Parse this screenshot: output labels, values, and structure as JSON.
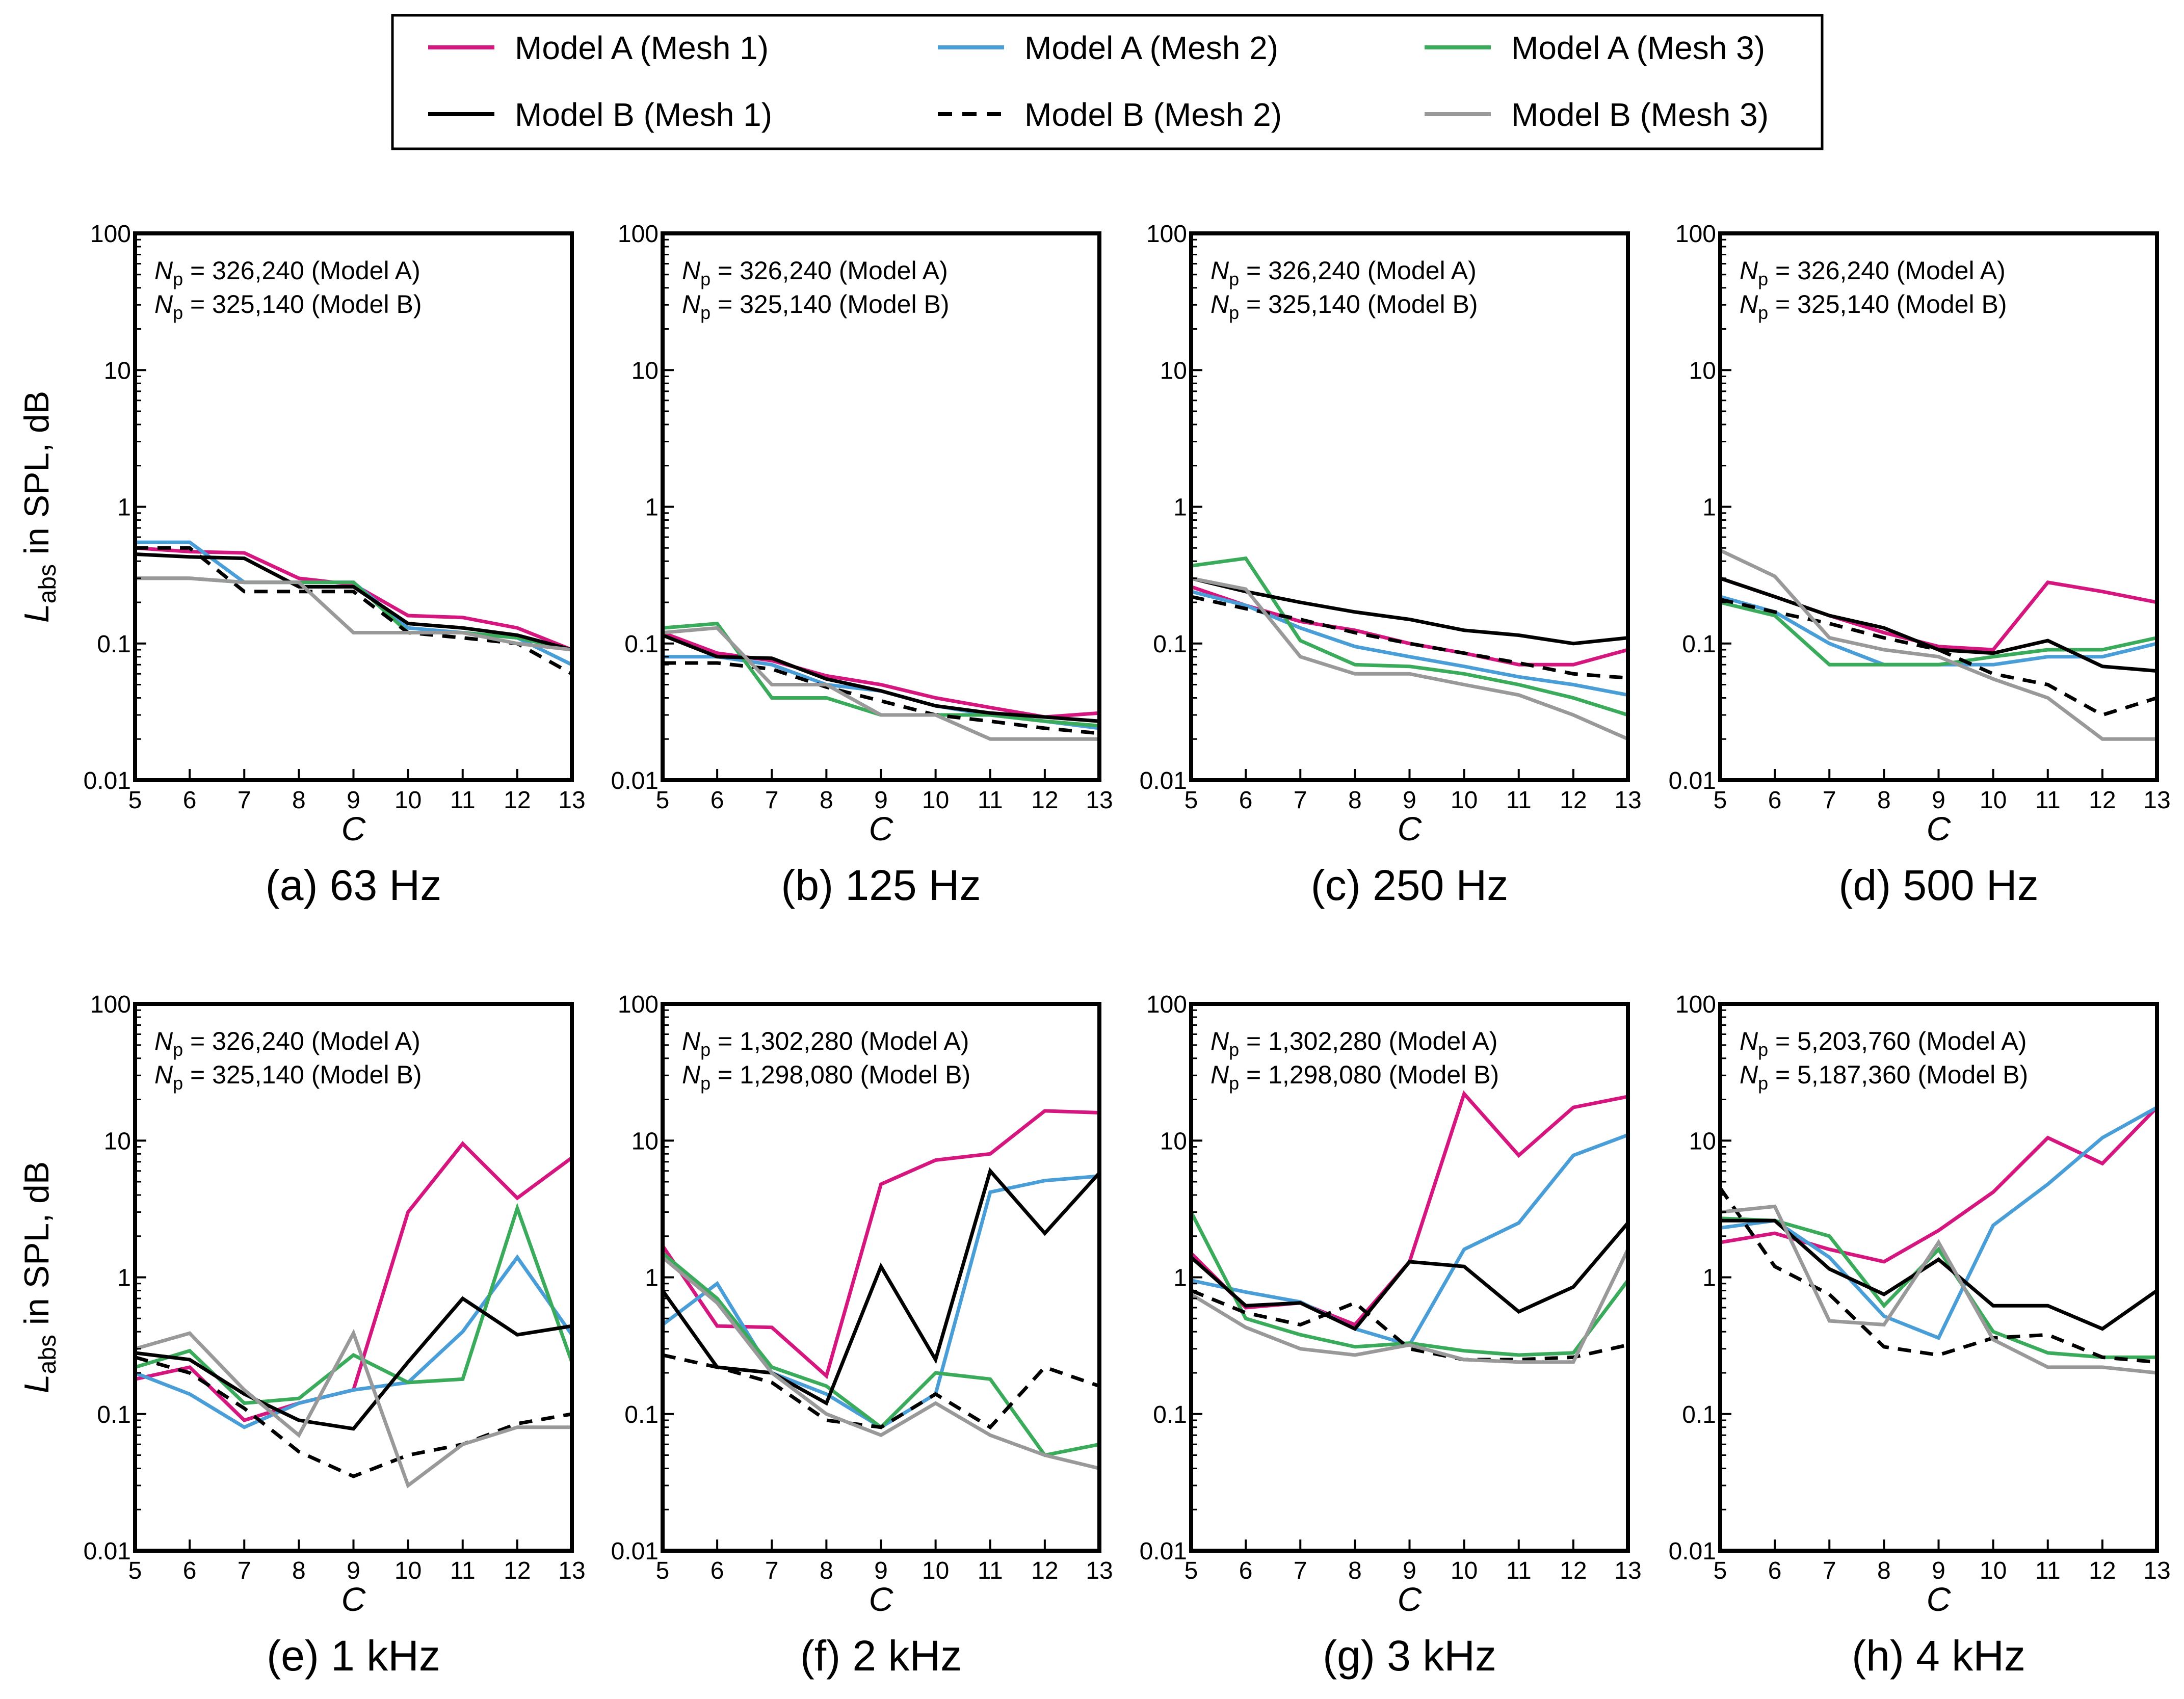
{
  "legend": {
    "entries": [
      {
        "key": "A1",
        "label": "Model A (Mesh 1)",
        "color": "#d6167f",
        "dash": false
      },
      {
        "key": "A2",
        "label": "Model A (Mesh 2)",
        "color": "#4a9ed8",
        "dash": false
      },
      {
        "key": "A3",
        "label": "Model A (Mesh 3)",
        "color": "#3aaa5b",
        "dash": false
      },
      {
        "key": "B1",
        "label": "Model B (Mesh 1)",
        "color": "#000000",
        "dash": false
      },
      {
        "key": "B2",
        "label": "Model B (Mesh 2)",
        "color": "#000000",
        "dash": true
      },
      {
        "key": "B3",
        "label": "Model B (Mesh 3)",
        "color": "#999999",
        "dash": false
      }
    ]
  },
  "axes": {
    "ylabel_main": "L",
    "ylabel_sub": "abs",
    "ylabel_rest": " in SPL, dB",
    "xlabel": "C",
    "np_main": "N",
    "np_sub": "p",
    "x_ticks": [
      "5",
      "6",
      "7",
      "8",
      "9",
      "10",
      "11",
      "12",
      "13"
    ],
    "y_ticks": [
      "0.01",
      "0.1",
      "1",
      "10",
      "100"
    ]
  },
  "chart_data": [
    {
      "type": "line",
      "title": "(a) 63 Hz",
      "annotations": [
        "= 326,240 (Model A)",
        "= 325,140 (Model B)"
      ],
      "x": [
        5,
        6,
        7,
        8,
        9,
        10,
        11,
        12,
        13
      ],
      "xlim": [
        5,
        13
      ],
      "ylim": [
        0.01,
        100
      ],
      "yscale": "log",
      "grid": false,
      "series": [
        {
          "name": "Model A (Mesh 1)",
          "values": [
            0.5,
            0.47,
            0.46,
            0.3,
            0.27,
            0.16,
            0.155,
            0.13,
            0.09
          ]
        },
        {
          "name": "Model A (Mesh 2)",
          "values": [
            0.55,
            0.55,
            0.28,
            0.28,
            0.28,
            0.13,
            0.12,
            0.11,
            0.07
          ]
        },
        {
          "name": "Model A (Mesh 3)",
          "values": [
            0.3,
            0.3,
            0.28,
            0.28,
            0.28,
            0.12,
            0.12,
            0.11,
            0.09
          ]
        },
        {
          "name": "Model B (Mesh 1)",
          "values": [
            0.45,
            0.43,
            0.42,
            0.26,
            0.26,
            0.14,
            0.13,
            0.115,
            0.09
          ]
        },
        {
          "name": "Model B (Mesh 2)",
          "values": [
            0.5,
            0.5,
            0.24,
            0.24,
            0.24,
            0.12,
            0.11,
            0.1,
            0.06
          ]
        },
        {
          "name": "Model B (Mesh 3)",
          "values": [
            0.3,
            0.3,
            0.28,
            0.28,
            0.12,
            0.12,
            0.12,
            0.1,
            0.09
          ]
        }
      ]
    },
    {
      "type": "line",
      "title": "(b) 125 Hz",
      "annotations": [
        "= 326,240 (Model A)",
        "= 325,140 (Model B)"
      ],
      "x": [
        5,
        6,
        7,
        8,
        9,
        10,
        11,
        12,
        13
      ],
      "xlim": [
        5,
        13
      ],
      "ylim": [
        0.01,
        100
      ],
      "yscale": "log",
      "grid": false,
      "series": [
        {
          "name": "Model A (Mesh 1)",
          "values": [
            0.12,
            0.085,
            0.075,
            0.058,
            0.05,
            0.04,
            0.034,
            0.029,
            0.031
          ]
        },
        {
          "name": "Model A (Mesh 2)",
          "values": [
            0.08,
            0.08,
            0.07,
            0.05,
            0.045,
            0.035,
            0.03,
            0.027,
            0.024
          ]
        },
        {
          "name": "Model A (Mesh 3)",
          "values": [
            0.13,
            0.14,
            0.04,
            0.04,
            0.03,
            0.03,
            0.03,
            0.027,
            0.025
          ]
        },
        {
          "name": "Model B (Mesh 1)",
          "values": [
            0.115,
            0.08,
            0.078,
            0.055,
            0.045,
            0.035,
            0.031,
            0.029,
            0.027
          ]
        },
        {
          "name": "Model B (Mesh 2)",
          "values": [
            0.072,
            0.072,
            0.065,
            0.048,
            0.038,
            0.03,
            0.027,
            0.024,
            0.022
          ]
        },
        {
          "name": "Model B (Mesh 3)",
          "values": [
            0.12,
            0.13,
            0.05,
            0.05,
            0.03,
            0.03,
            0.02,
            0.02,
            0.02
          ]
        }
      ]
    },
    {
      "type": "line",
      "title": "(c) 250 Hz",
      "annotations": [
        "= 326,240 (Model A)",
        "= 325,140 (Model B)"
      ],
      "x": [
        5,
        6,
        7,
        8,
        9,
        10,
        11,
        12,
        13
      ],
      "xlim": [
        5,
        13
      ],
      "ylim": [
        0.01,
        100
      ],
      "yscale": "log",
      "grid": false,
      "series": [
        {
          "name": "Model A (Mesh 1)",
          "values": [
            0.26,
            0.19,
            0.145,
            0.125,
            0.1,
            0.085,
            0.07,
            0.07,
            0.09
          ]
        },
        {
          "name": "Model A (Mesh 2)",
          "values": [
            0.24,
            0.19,
            0.13,
            0.095,
            0.08,
            0.068,
            0.057,
            0.05,
            0.042
          ]
        },
        {
          "name": "Model A (Mesh 3)",
          "values": [
            0.37,
            0.42,
            0.105,
            0.07,
            0.068,
            0.06,
            0.05,
            0.04,
            0.03
          ]
        },
        {
          "name": "Model B (Mesh 1)",
          "values": [
            0.3,
            0.24,
            0.2,
            0.17,
            0.15,
            0.125,
            0.115,
            0.1,
            0.11
          ]
        },
        {
          "name": "Model B (Mesh 2)",
          "values": [
            0.22,
            0.18,
            0.15,
            0.12,
            0.1,
            0.085,
            0.072,
            0.06,
            0.056
          ]
        },
        {
          "name": "Model B (Mesh 3)",
          "values": [
            0.3,
            0.25,
            0.08,
            0.06,
            0.06,
            0.05,
            0.042,
            0.03,
            0.02
          ]
        }
      ]
    },
    {
      "type": "line",
      "title": "(d) 500 Hz",
      "annotations": [
        "= 326,240 (Model A)",
        "= 325,140 (Model B)"
      ],
      "x": [
        5,
        6,
        7,
        8,
        9,
        10,
        11,
        12,
        13
      ],
      "xlim": [
        5,
        13
      ],
      "ylim": [
        0.01,
        100
      ],
      "yscale": "log",
      "grid": false,
      "series": [
        {
          "name": "Model A (Mesh 1)",
          "values": [
            0.3,
            0.22,
            0.16,
            0.12,
            0.095,
            0.09,
            0.28,
            0.24,
            0.2
          ]
        },
        {
          "name": "Model A (Mesh 2)",
          "values": [
            0.22,
            0.17,
            0.1,
            0.07,
            0.07,
            0.07,
            0.08,
            0.08,
            0.1
          ]
        },
        {
          "name": "Model A (Mesh 3)",
          "values": [
            0.2,
            0.16,
            0.07,
            0.07,
            0.07,
            0.08,
            0.09,
            0.09,
            0.11
          ]
        },
        {
          "name": "Model B (Mesh 1)",
          "values": [
            0.3,
            0.22,
            0.16,
            0.13,
            0.09,
            0.085,
            0.105,
            0.068,
            0.063
          ]
        },
        {
          "name": "Model B (Mesh 2)",
          "values": [
            0.21,
            0.17,
            0.14,
            0.11,
            0.09,
            0.06,
            0.05,
            0.03,
            0.04
          ]
        },
        {
          "name": "Model B (Mesh 3)",
          "values": [
            0.48,
            0.31,
            0.11,
            0.09,
            0.08,
            0.055,
            0.04,
            0.02,
            0.02
          ]
        }
      ]
    },
    {
      "type": "line",
      "title": "(e) 1 kHz",
      "annotations": [
        "= 326,240 (Model A)",
        "= 325,140 (Model B)"
      ],
      "x": [
        5,
        6,
        7,
        8,
        9,
        10,
        11,
        12,
        13
      ],
      "xlim": [
        5,
        13
      ],
      "ylim": [
        0.01,
        100
      ],
      "yscale": "log",
      "grid": false,
      "series": [
        {
          "name": "Model A (Mesh 1)",
          "values": [
            0.18,
            0.22,
            0.09,
            0.12,
            0.15,
            3.0,
            9.5,
            3.8,
            7.5
          ]
        },
        {
          "name": "Model A (Mesh 2)",
          "values": [
            0.2,
            0.14,
            0.08,
            0.12,
            0.15,
            0.17,
            0.4,
            1.4,
            0.38
          ]
        },
        {
          "name": "Model A (Mesh 3)",
          "values": [
            0.22,
            0.29,
            0.12,
            0.13,
            0.27,
            0.17,
            0.18,
            3.2,
            0.24
          ]
        },
        {
          "name": "Model B (Mesh 1)",
          "values": [
            0.28,
            0.25,
            0.14,
            0.09,
            0.078,
            0.24,
            0.7,
            0.38,
            0.44
          ]
        },
        {
          "name": "Model B (Mesh 2)",
          "values": [
            0.26,
            0.2,
            0.11,
            0.053,
            0.035,
            0.05,
            0.06,
            0.085,
            0.1
          ]
        },
        {
          "name": "Model B (Mesh 3)",
          "values": [
            0.3,
            0.39,
            0.15,
            0.07,
            0.39,
            0.03,
            0.06,
            0.08,
            0.08
          ]
        }
      ]
    },
    {
      "type": "line",
      "title": "(f) 2 kHz",
      "annotations": [
        "= 1,302,280 (Model A)",
        "= 1,298,080 (Model B)"
      ],
      "x": [
        5,
        6,
        7,
        8,
        9,
        10,
        11,
        12,
        13
      ],
      "xlim": [
        5,
        13
      ],
      "ylim": [
        0.01,
        100
      ],
      "yscale": "log",
      "grid": false,
      "series": [
        {
          "name": "Model A (Mesh 1)",
          "values": [
            1.7,
            0.44,
            0.43,
            0.19,
            4.8,
            7.2,
            8.0,
            16.5,
            16.0
          ]
        },
        {
          "name": "Model A (Mesh 2)",
          "values": [
            0.45,
            0.9,
            0.2,
            0.14,
            0.08,
            0.14,
            4.2,
            5.1,
            5.5
          ]
        },
        {
          "name": "Model A (Mesh 3)",
          "values": [
            1.5,
            0.7,
            0.22,
            0.16,
            0.08,
            0.2,
            0.18,
            0.05,
            0.06
          ]
        },
        {
          "name": "Model B (Mesh 1)",
          "values": [
            0.8,
            0.22,
            0.2,
            0.12,
            1.2,
            0.25,
            6.0,
            2.1,
            5.8
          ]
        },
        {
          "name": "Model B (Mesh 2)",
          "values": [
            0.27,
            0.22,
            0.17,
            0.09,
            0.08,
            0.14,
            0.08,
            0.22,
            0.16
          ]
        },
        {
          "name": "Model B (Mesh 3)",
          "values": [
            1.4,
            0.65,
            0.2,
            0.1,
            0.07,
            0.12,
            0.07,
            0.05,
            0.04
          ]
        }
      ]
    },
    {
      "type": "line",
      "title": "(g) 3 kHz",
      "annotations": [
        "= 1,302,280 (Model A)",
        "= 1,298,080 (Model B)"
      ],
      "x": [
        5,
        6,
        7,
        8,
        9,
        10,
        11,
        12,
        13
      ],
      "xlim": [
        5,
        13
      ],
      "ylim": [
        0.01,
        100
      ],
      "yscale": "log",
      "grid": false,
      "series": [
        {
          "name": "Model A (Mesh 1)",
          "values": [
            1.5,
            0.6,
            0.65,
            0.45,
            1.3,
            22.0,
            7.8,
            17.5,
            21.0
          ]
        },
        {
          "name": "Model A (Mesh 2)",
          "values": [
            0.95,
            0.78,
            0.66,
            0.42,
            0.32,
            1.6,
            2.5,
            7.8,
            11.0
          ]
        },
        {
          "name": "Model A (Mesh 3)",
          "values": [
            3.0,
            0.5,
            0.38,
            0.31,
            0.33,
            0.29,
            0.27,
            0.28,
            0.95
          ]
        },
        {
          "name": "Model B (Mesh 1)",
          "values": [
            1.4,
            0.62,
            0.65,
            0.42,
            1.3,
            1.2,
            0.56,
            0.85,
            2.5
          ]
        },
        {
          "name": "Model B (Mesh 2)",
          "values": [
            0.8,
            0.55,
            0.45,
            0.65,
            0.3,
            0.25,
            0.25,
            0.26,
            0.32
          ]
        },
        {
          "name": "Model B (Mesh 3)",
          "values": [
            0.75,
            0.43,
            0.3,
            0.27,
            0.32,
            0.25,
            0.24,
            0.24,
            1.6
          ]
        }
      ]
    },
    {
      "type": "line",
      "title": "(h) 4 kHz",
      "annotations": [
        "= 5,203,760 (Model A)",
        "= 5,187,360 (Model B)"
      ],
      "x": [
        5,
        6,
        7,
        8,
        9,
        10,
        11,
        12,
        13
      ],
      "xlim": [
        5,
        13
      ],
      "ylim": [
        0.01,
        100
      ],
      "yscale": "log",
      "grid": false,
      "series": [
        {
          "name": "Model A (Mesh 1)",
          "values": [
            1.8,
            2.1,
            1.6,
            1.3,
            2.2,
            4.2,
            10.5,
            6.8,
            17.5
          ]
        },
        {
          "name": "Model A (Mesh 2)",
          "values": [
            2.3,
            2.6,
            1.4,
            0.52,
            0.36,
            2.4,
            4.8,
            10.5,
            17.5
          ]
        },
        {
          "name": "Model A (Mesh 3)",
          "values": [
            2.7,
            2.6,
            2.0,
            0.62,
            1.6,
            0.4,
            0.28,
            0.26,
            0.26
          ]
        },
        {
          "name": "Model B (Mesh 1)",
          "values": [
            2.6,
            2.6,
            1.15,
            0.75,
            1.35,
            0.62,
            0.62,
            0.42,
            0.8
          ]
        },
        {
          "name": "Model B (Mesh 2)",
          "values": [
            4.5,
            1.2,
            0.75,
            0.31,
            0.27,
            0.36,
            0.38,
            0.26,
            0.24
          ]
        },
        {
          "name": "Model B (Mesh 3)",
          "values": [
            3.0,
            3.3,
            0.48,
            0.45,
            1.8,
            0.35,
            0.22,
            0.22,
            0.2
          ]
        }
      ]
    }
  ]
}
